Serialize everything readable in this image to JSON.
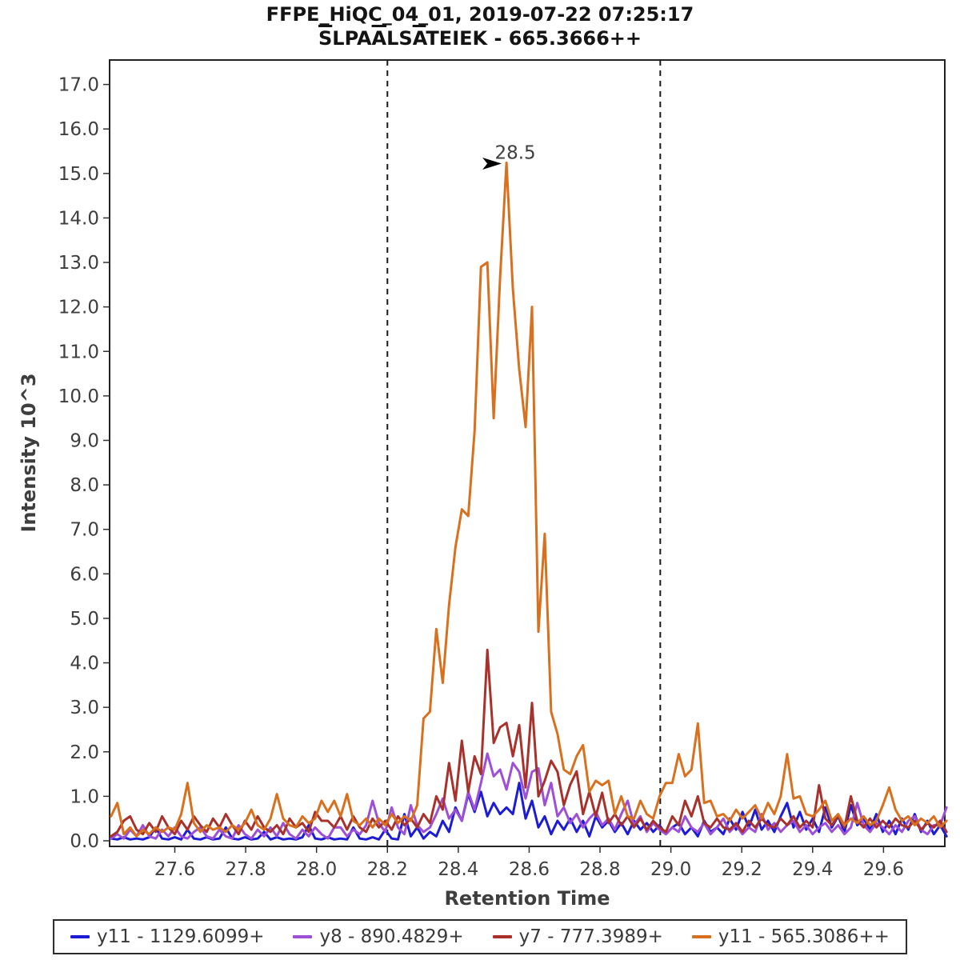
{
  "header": {
    "title_line1": "FFPE_HiQC_04_01, 2019-07-22 07:25:17",
    "peptide_parts": [
      {
        "t": "S",
        "ov": true
      },
      {
        "t": "LPA",
        "ov": false
      },
      {
        "t": "A",
        "ov": true
      },
      {
        "t": "LS",
        "ov": false
      },
      {
        "t": "A",
        "ov": true
      },
      {
        "t": "TEIEK - 665.3666++",
        "ov": false
      }
    ]
  },
  "chart_data": {
    "type": "line",
    "title": "FFPE_HiQC_04_01, 2019-07-22 07:25:17",
    "subtitle": "SLPAALSATEIEK - 665.3666++",
    "xlabel": "Retention Time",
    "ylabel": "Intensity 10^3",
    "xlim": [
      27.416,
      29.773
    ],
    "ylim": [
      0,
      17.55
    ],
    "xtick_values": [
      27.6,
      27.8,
      28.0,
      28.2,
      28.4,
      28.6,
      28.8,
      29.0,
      29.2,
      29.4,
      29.6
    ],
    "xtick_labels": [
      "27.6",
      "27.8",
      "28.0",
      "28.2",
      "28.4",
      "28.6",
      "28.8",
      "29.0",
      "29.2",
      "29.4",
      "29.6"
    ],
    "ytick_values": [
      0,
      1,
      2,
      3,
      4,
      5,
      6,
      7,
      8,
      9,
      10,
      11,
      12,
      13,
      14,
      15,
      16,
      17
    ],
    "ytick_labels": [
      "0.0",
      "1.0",
      "2.0",
      "3.0",
      "4.0",
      "5.0",
      "6.0",
      "7.0",
      "8.0",
      "9.0",
      "10.0",
      "11.0",
      "12.0",
      "13.0",
      "14.0",
      "15.0",
      "16.0",
      "17.0"
    ],
    "grid": false,
    "legend_position": "bottom",
    "integration_boundaries": [
      28.2,
      28.97
    ],
    "annotation": {
      "text": "28.5",
      "x": 28.536,
      "y": 15.24
    },
    "x_start": 27.42,
    "x_step": 0.018,
    "n_points": 132,
    "series": [
      {
        "name": "y11 - 1129.6099+",
        "color": "#1c1cd6",
        "values": [
          0.05,
          0.03,
          0.08,
          0.03,
          0.05,
          0.03,
          0.08,
          0.3,
          0.05,
          0.03,
          0.08,
          0.03,
          0.25,
          0.05,
          0.03,
          0.08,
          0.03,
          0.05,
          0.3,
          0.05,
          0.03,
          0.08,
          0.03,
          0.05,
          0.2,
          0.03,
          0.08,
          0.03,
          0.05,
          0.03,
          0.08,
          0.35,
          0.05,
          0.03,
          0.08,
          0.03,
          0.05,
          0.03,
          0.3,
          0.05,
          0.03,
          0.08,
          0.03,
          0.25,
          0.05,
          0.03,
          0.6,
          0.1,
          0.3,
          0.05,
          0.2,
          0.1,
          0.45,
          0.2,
          0.75,
          0.45,
          1.05,
          0.65,
          1.1,
          0.55,
          0.85,
          0.6,
          0.75,
          0.6,
          1.3,
          0.5,
          0.9,
          0.3,
          0.55,
          0.15,
          0.45,
          0.25,
          0.5,
          0.2,
          0.45,
          0.1,
          0.55,
          0.3,
          0.45,
          0.2,
          0.4,
          0.15,
          0.45,
          0.25,
          0.4,
          0.2,
          0.35,
          0.15,
          0.3,
          0.4,
          0.15,
          0.3,
          0.1,
          0.45,
          0.2,
          0.3,
          0.15,
          0.5,
          0.25,
          0.65,
          0.3,
          0.7,
          0.25,
          0.45,
          0.2,
          0.55,
          0.85,
          0.3,
          0.65,
          0.25,
          0.5,
          0.2,
          0.75,
          0.3,
          0.55,
          0.2,
          0.8,
          0.35,
          0.5,
          0.25,
          0.6,
          0.2,
          0.45,
          0.15,
          0.5,
          0.25,
          0.6,
          0.2,
          0.45,
          0.15,
          0.35,
          0.1
        ]
      },
      {
        "name": "y8 - 890.4829+",
        "color": "#9d4fd8",
        "values": [
          0.05,
          0.15,
          0.05,
          0.25,
          0.1,
          0.35,
          0.1,
          0.05,
          0.25,
          0.1,
          0.3,
          0.1,
          0.05,
          0.2,
          0.3,
          0.1,
          0.05,
          0.25,
          0.1,
          0.05,
          0.35,
          0.15,
          0.05,
          0.25,
          0.1,
          0.3,
          0.1,
          0.4,
          0.15,
          0.05,
          0.25,
          0.1,
          0.3,
          0.15,
          0.05,
          0.3,
          0.3,
          0.1,
          0.25,
          0.15,
          0.35,
          0.9,
          0.4,
          0.2,
          0.75,
          0.3,
          0.15,
          0.8,
          0.35,
          0.2,
          0.3,
          0.6,
          0.95,
          0.5,
          0.7,
          0.45,
          1.1,
          0.7,
          1.3,
          1.96,
          1.45,
          1.6,
          1.15,
          1.75,
          1.55,
          0.95,
          1.55,
          1.63,
          0.8,
          1.3,
          0.55,
          0.75,
          0.4,
          0.6,
          0.3,
          0.5,
          0.65,
          0.35,
          0.5,
          0.25,
          0.6,
          0.9,
          0.35,
          0.55,
          0.2,
          0.4,
          0.25,
          0.15,
          0.3,
          0.2,
          0.55,
          0.3,
          0.2,
          0.4,
          0.15,
          0.3,
          0.5,
          0.2,
          0.35,
          0.15,
          0.3,
          0.2,
          0.6,
          0.25,
          0.4,
          0.2,
          0.35,
          0.45,
          0.2,
          0.35,
          0.15,
          0.3,
          0.4,
          0.2,
          0.35,
          0.15,
          0.3,
          0.85,
          0.35,
          0.2,
          0.4,
          0.3,
          0.15,
          0.35,
          0.2,
          0.45,
          0.55,
          0.25,
          0.15,
          0.35,
          0.35,
          0.75
        ]
      },
      {
        "name": "y7 - 777.3989+",
        "color": "#a8322b",
        "values": [
          0.1,
          0.2,
          0.45,
          0.55,
          0.25,
          0.15,
          0.4,
          0.2,
          0.55,
          0.3,
          0.15,
          0.45,
          0.25,
          0.55,
          0.35,
          0.2,
          0.5,
          0.3,
          0.6,
          0.35,
          0.15,
          0.45,
          0.25,
          0.55,
          0.3,
          0.2,
          0.35,
          0.15,
          0.5,
          0.3,
          0.4,
          0.2,
          0.65,
          0.45,
          0.45,
          0.3,
          0.55,
          0.25,
          0.55,
          0.3,
          0.2,
          0.5,
          0.3,
          0.45,
          0.25,
          0.55,
          0.35,
          0.5,
          0.3,
          0.6,
          0.4,
          1.0,
          0.7,
          1.75,
          0.9,
          2.25,
          1.1,
          1.9,
          1.5,
          4.29,
          2.2,
          2.55,
          2.65,
          1.9,
          2.6,
          1.2,
          3.1,
          1.0,
          1.35,
          1.8,
          1.55,
          0.8,
          1.26,
          1.56,
          0.6,
          1.1,
          0.55,
          1.08,
          0.4,
          0.6,
          0.35,
          0.55,
          0.3,
          0.5,
          0.25,
          0.45,
          0.3,
          0.2,
          0.55,
          0.35,
          0.9,
          0.55,
          1.0,
          0.4,
          0.3,
          0.5,
          0.3,
          0.25,
          0.4,
          0.2,
          0.45,
          0.3,
          0.5,
          0.35,
          0.3,
          0.5,
          0.35,
          0.55,
          0.3,
          0.45,
          0.3,
          1.25,
          0.5,
          0.35,
          0.55,
          0.3,
          1.0,
          0.45,
          0.3,
          0.5,
          0.3,
          0.45,
          0.3,
          0.5,
          0.35,
          0.3,
          0.45,
          0.25,
          0.4,
          0.3,
          0.45,
          0.2
        ]
      },
      {
        "name": "y11 - 565.3086++",
        "color": "#d9701e",
        "values": [
          0.55,
          0.85,
          0.15,
          0.3,
          0.1,
          0.25,
          0.15,
          0.3,
          0.2,
          0.3,
          0.25,
          0.6,
          1.3,
          0.4,
          0.2,
          0.35,
          0.25,
          0.3,
          0.2,
          0.35,
          0.25,
          0.4,
          0.7,
          0.35,
          0.25,
          0.5,
          1.05,
          0.5,
          0.35,
          0.3,
          0.55,
          0.4,
          0.5,
          0.9,
          0.65,
          0.9,
          0.55,
          1.05,
          0.45,
          0.35,
          0.5,
          0.3,
          0.5,
          0.35,
          0.6,
          0.4,
          0.55,
          0.45,
          0.8,
          2.75,
          2.9,
          4.76,
          3.55,
          5.3,
          6.6,
          7.45,
          7.3,
          9.2,
          12.9,
          13.0,
          9.5,
          12.65,
          15.24,
          12.4,
          10.6,
          9.3,
          12.0,
          4.7,
          6.9,
          2.9,
          2.4,
          1.6,
          1.5,
          1.9,
          2.15,
          1.1,
          1.35,
          1.25,
          1.35,
          0.6,
          1.0,
          0.55,
          0.5,
          0.9,
          0.6,
          0.5,
          1.0,
          1.3,
          1.3,
          1.95,
          1.45,
          1.6,
          2.64,
          0.85,
          0.9,
          0.55,
          0.6,
          0.45,
          0.7,
          0.5,
          0.65,
          0.8,
          0.5,
          0.85,
          0.6,
          1.0,
          1.95,
          0.95,
          1.0,
          0.6,
          0.55,
          0.7,
          0.9,
          0.45,
          0.6,
          0.35,
          0.5,
          0.4,
          0.55,
          0.35,
          0.45,
          0.8,
          1.2,
          0.7,
          0.45,
          0.55,
          0.35,
          0.5,
          0.4,
          0.55,
          0.3,
          0.45
        ]
      }
    ]
  },
  "plot_style": {
    "frame_color": "#222222",
    "boundary_line_color": "#1a1a1a",
    "annotation_color": "#d9701e",
    "arrow_color": "#000000"
  }
}
